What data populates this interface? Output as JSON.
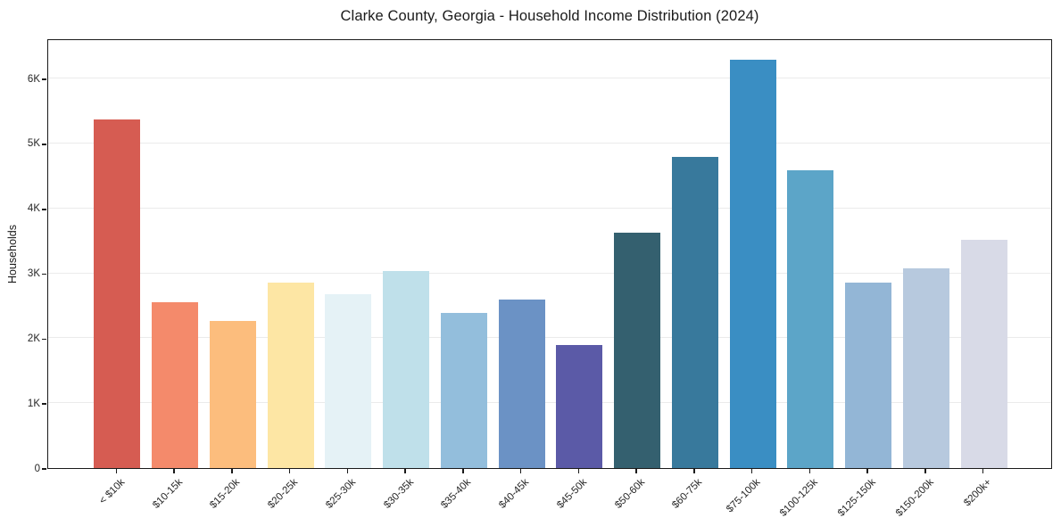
{
  "chart_data": {
    "type": "bar",
    "title": "Clarke County, Georgia - Household Income Distribution (2024)",
    "xlabel": "",
    "ylabel": "Households",
    "categories": [
      "< $10k",
      "$10-15k",
      "$15-20k",
      "$20-25k",
      "$25-30k",
      "$30-35k",
      "$35-40k",
      "$40-45k",
      "$45-50k",
      "$50-60k",
      "$60-75k",
      "$75-100k",
      "$100-125k",
      "$125-150k",
      "$150-200k",
      "$200k+"
    ],
    "values": [
      5370,
      2560,
      2270,
      2860,
      2680,
      3030,
      2390,
      2600,
      1890,
      3620,
      4800,
      6290,
      4590,
      2860,
      3070,
      3520
    ],
    "bar_colors": [
      "#d65c52",
      "#f48a6b",
      "#fcbd7d",
      "#fde6a4",
      "#e5f2f6",
      "#bfe0ea",
      "#93bedc",
      "#6b92c5",
      "#5b5aa7",
      "#34606f",
      "#38799c",
      "#3a8ec3",
      "#5ca5c8",
      "#93b6d6",
      "#b7c9de",
      "#d8dae7"
    ],
    "ylim": [
      0,
      6620
    ],
    "yticks": [
      {
        "value": 0,
        "label": "0"
      },
      {
        "value": 1000,
        "label": "1K"
      },
      {
        "value": 2000,
        "label": "2K"
      },
      {
        "value": 3000,
        "label": "3K"
      },
      {
        "value": 4000,
        "label": "4K"
      },
      {
        "value": 5000,
        "label": "5K"
      },
      {
        "value": 6000,
        "label": "6K"
      }
    ],
    "grid": "horizontal",
    "legend": "none",
    "colors": {
      "background": "#ffffff",
      "gridline": "#ebebeb",
      "axis": "#1a1a1a",
      "tick_text": "#262626"
    }
  }
}
